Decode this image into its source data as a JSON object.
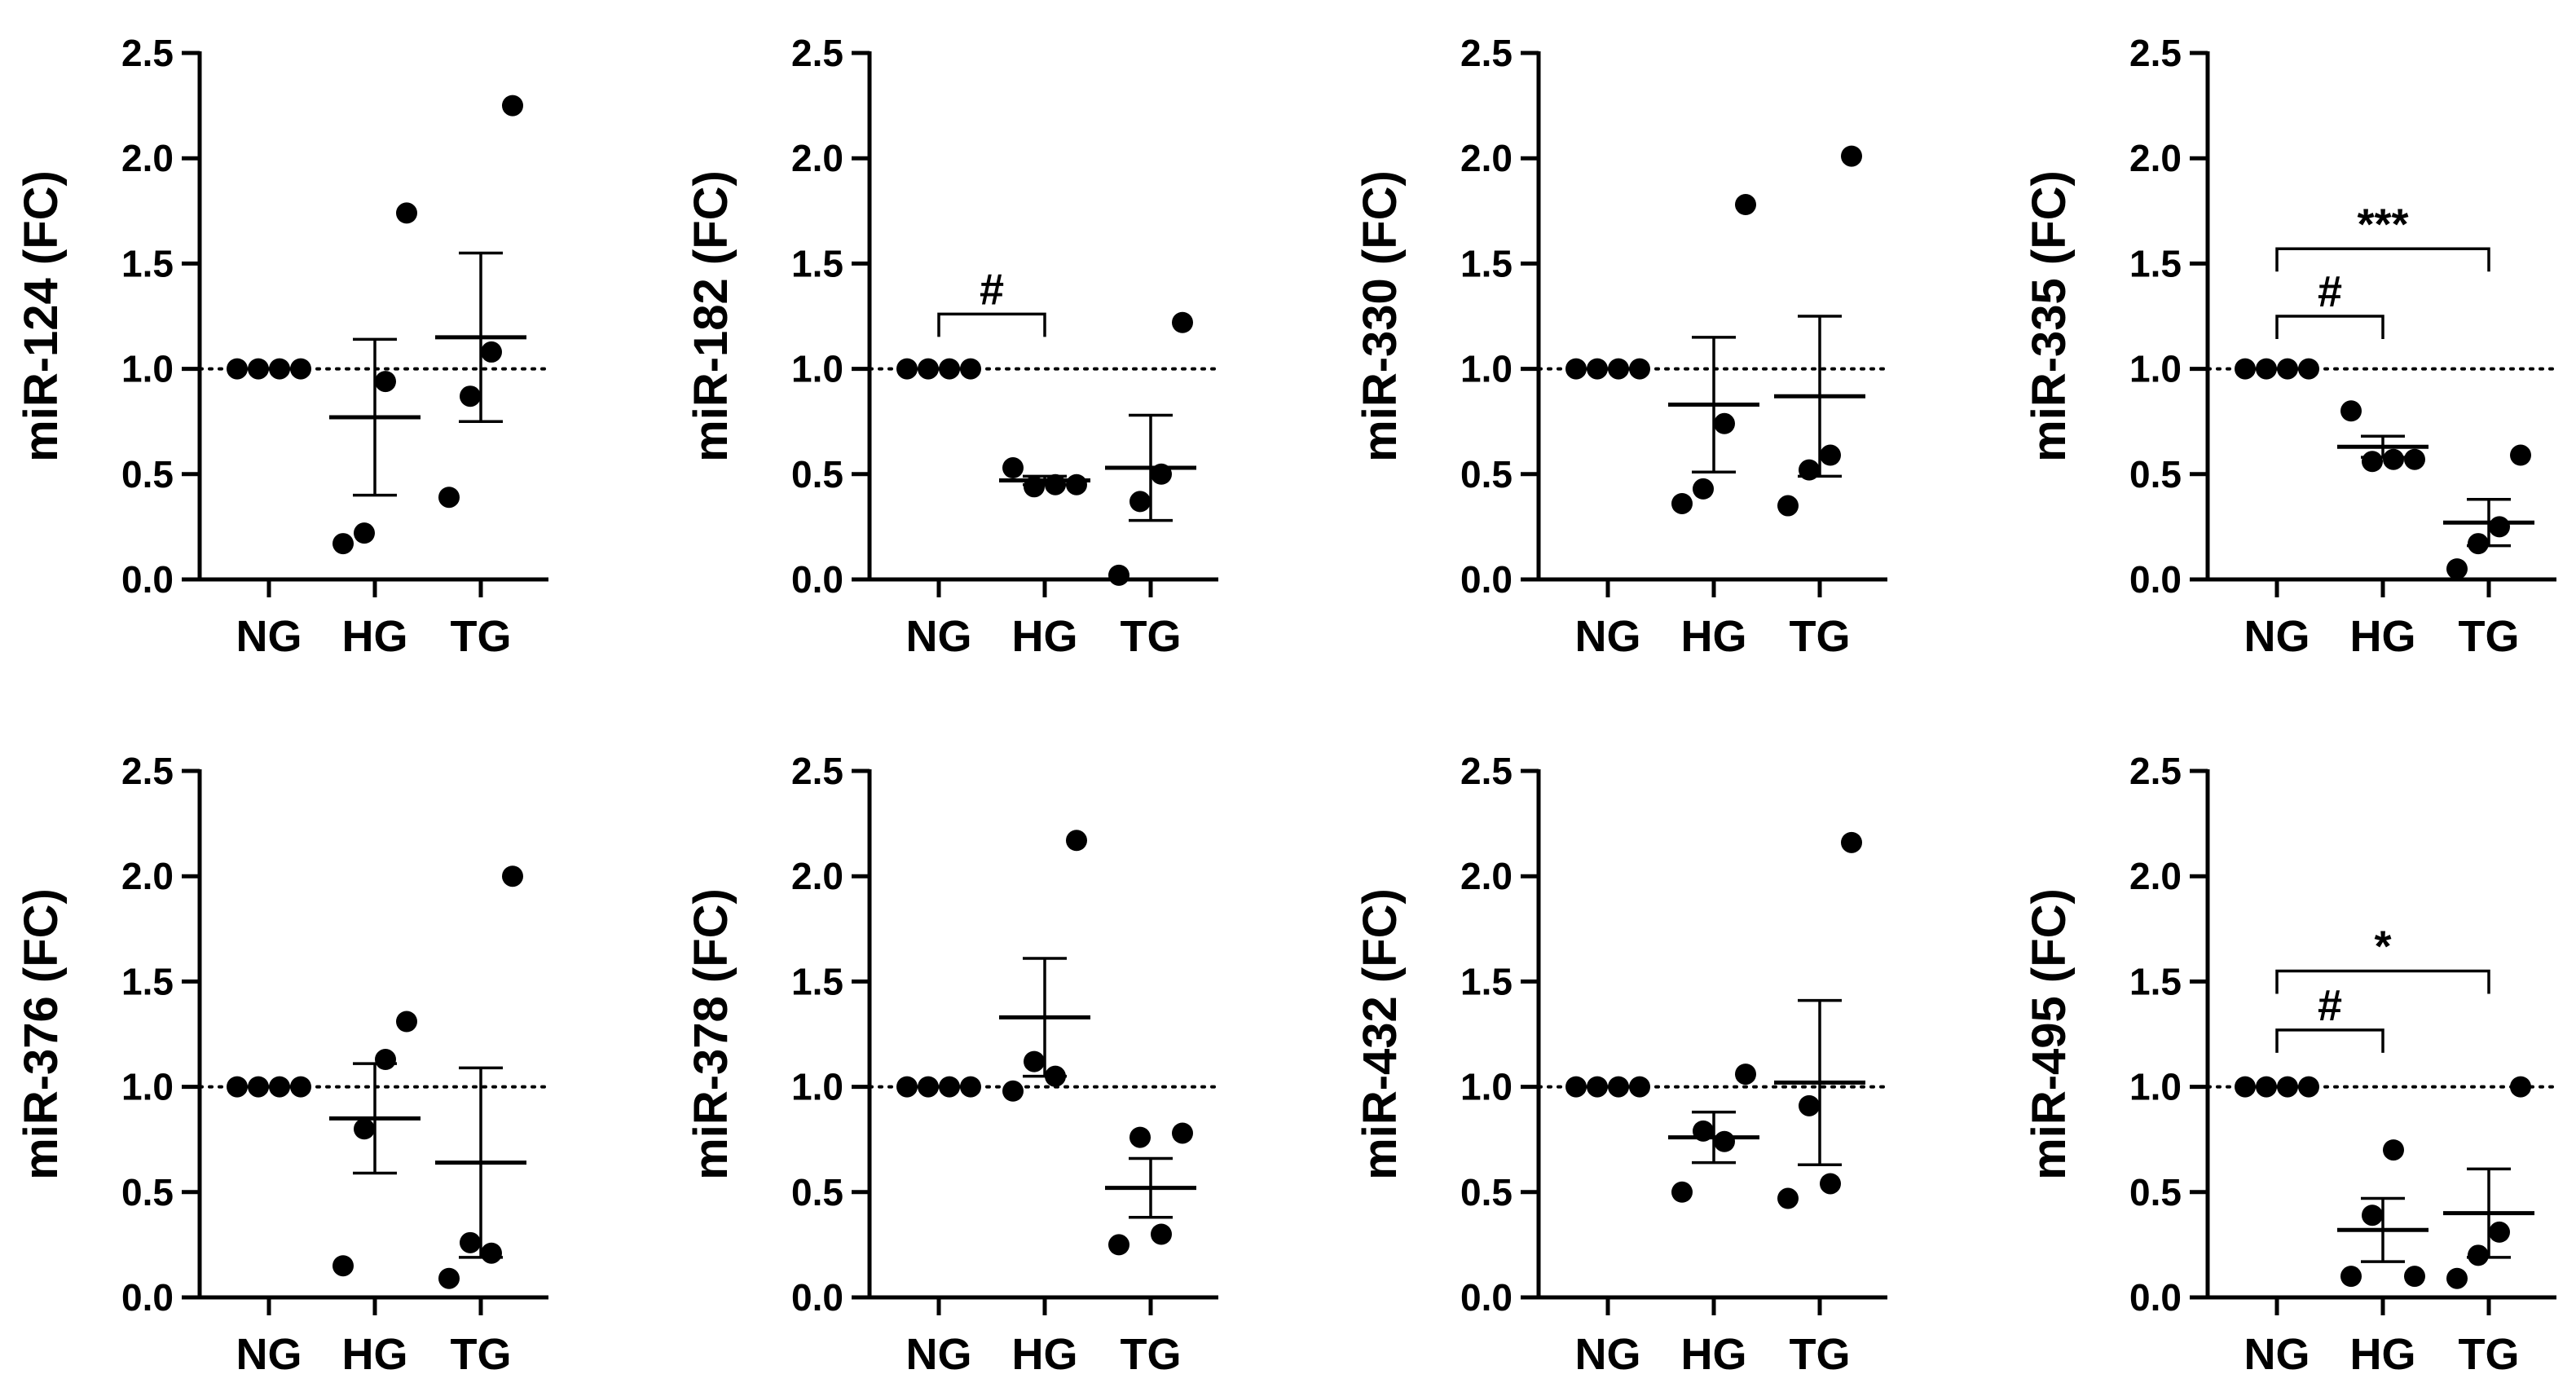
{
  "chart_data": [
    {
      "type": "scatter",
      "ylabel": "miR-124 (FC)",
      "categories": [
        "NG",
        "HG",
        "TG"
      ],
      "ylim": [
        0,
        2.5
      ],
      "yticks": [
        "0.0",
        "0.5",
        "1.0",
        "1.5",
        "2.0",
        "2.5"
      ],
      "reference_line": 1.0,
      "groups": [
        {
          "name": "NG",
          "points": [
            1.0,
            1.0,
            1.0,
            1.0
          ],
          "mean": 1.0,
          "sem": 0.0
        },
        {
          "name": "HG",
          "points": [
            0.17,
            0.22,
            0.94,
            1.74
          ],
          "mean": 0.77,
          "sem": 0.37
        },
        {
          "name": "TG",
          "points": [
            0.39,
            0.87,
            1.08,
            2.25
          ],
          "mean": 1.15,
          "sem": 0.4
        }
      ],
      "significance": []
    },
    {
      "type": "scatter",
      "ylabel": "miR-182 (FC)",
      "categories": [
        "NG",
        "HG",
        "TG"
      ],
      "ylim": [
        0,
        2.5
      ],
      "yticks": [
        "0.0",
        "0.5",
        "1.0",
        "1.5",
        "2.0",
        "2.5"
      ],
      "reference_line": 1.0,
      "groups": [
        {
          "name": "NG",
          "points": [
            1.0,
            1.0,
            1.0,
            1.0
          ],
          "mean": 1.0,
          "sem": 0.0
        },
        {
          "name": "HG",
          "points": [
            0.53,
            0.44,
            0.45,
            0.45
          ],
          "mean": 0.47,
          "sem": 0.02
        },
        {
          "name": "TG",
          "points": [
            0.02,
            0.37,
            0.5,
            1.22
          ],
          "mean": 0.53,
          "sem": 0.25
        }
      ],
      "significance": [
        {
          "from": 0,
          "to": 1,
          "label": "#",
          "level": 1.26
        }
      ]
    },
    {
      "type": "scatter",
      "ylabel": "miR-330 (FC)",
      "categories": [
        "NG",
        "HG",
        "TG"
      ],
      "ylim": [
        0,
        2.5
      ],
      "yticks": [
        "0.0",
        "0.5",
        "1.0",
        "1.5",
        "2.0",
        "2.5"
      ],
      "reference_line": 1.0,
      "groups": [
        {
          "name": "NG",
          "points": [
            1.0,
            1.0,
            1.0,
            1.0
          ],
          "mean": 1.0,
          "sem": 0.0
        },
        {
          "name": "HG",
          "points": [
            0.36,
            0.43,
            0.74,
            1.78
          ],
          "mean": 0.83,
          "sem": 0.32
        },
        {
          "name": "TG",
          "points": [
            0.35,
            0.52,
            0.59,
            2.01
          ],
          "mean": 0.87,
          "sem": 0.38
        }
      ],
      "significance": []
    },
    {
      "type": "scatter",
      "ylabel": "miR-335 (FC)",
      "categories": [
        "NG",
        "HG",
        "TG"
      ],
      "ylim": [
        0,
        2.5
      ],
      "yticks": [
        "0.0",
        "0.5",
        "1.0",
        "1.5",
        "2.0",
        "2.5"
      ],
      "reference_line": 1.0,
      "groups": [
        {
          "name": "NG",
          "points": [
            1.0,
            1.0,
            1.0,
            1.0
          ],
          "mean": 1.0,
          "sem": 0.0
        },
        {
          "name": "HG",
          "points": [
            0.8,
            0.56,
            0.57,
            0.57
          ],
          "mean": 0.63,
          "sem": 0.05
        },
        {
          "name": "TG",
          "points": [
            0.05,
            0.17,
            0.25,
            0.59
          ],
          "mean": 0.27,
          "sem": 0.11
        }
      ],
      "significance": [
        {
          "from": 0,
          "to": 1,
          "label": "#",
          "level": 1.25
        },
        {
          "from": 0,
          "to": 2,
          "label": "***",
          "level": 1.57
        }
      ]
    },
    {
      "type": "scatter",
      "ylabel": "miR-376 (FC)",
      "categories": [
        "NG",
        "HG",
        "TG"
      ],
      "ylim": [
        0,
        2.5
      ],
      "yticks": [
        "0.0",
        "0.5",
        "1.0",
        "1.5",
        "2.0",
        "2.5"
      ],
      "reference_line": 1.0,
      "groups": [
        {
          "name": "NG",
          "points": [
            1.0,
            1.0,
            1.0,
            1.0
          ],
          "mean": 1.0,
          "sem": 0.0
        },
        {
          "name": "HG",
          "points": [
            0.15,
            0.8,
            1.13,
            1.31
          ],
          "mean": 0.85,
          "sem": 0.26
        },
        {
          "name": "TG",
          "points": [
            0.09,
            0.26,
            0.21,
            2.0
          ],
          "mean": 0.64,
          "sem": 0.45
        }
      ],
      "significance": []
    },
    {
      "type": "scatter",
      "ylabel": "miR-378 (FC)",
      "categories": [
        "NG",
        "HG",
        "TG"
      ],
      "ylim": [
        0,
        2.5
      ],
      "yticks": [
        "0.0",
        "0.5",
        "1.0",
        "1.5",
        "2.0",
        "2.5"
      ],
      "reference_line": 1.0,
      "groups": [
        {
          "name": "NG",
          "points": [
            1.0,
            1.0,
            1.0,
            1.0
          ],
          "mean": 1.0,
          "sem": 0.0
        },
        {
          "name": "HG",
          "points": [
            0.98,
            1.12,
            1.05,
            2.17
          ],
          "mean": 1.33,
          "sem": 0.28
        },
        {
          "name": "TG",
          "points": [
            0.25,
            0.76,
            0.3,
            0.78
          ],
          "mean": 0.52,
          "sem": 0.14
        }
      ],
      "significance": []
    },
    {
      "type": "scatter",
      "ylabel": "miR-432 (FC)",
      "categories": [
        "NG",
        "HG",
        "TG"
      ],
      "ylim": [
        0,
        2.5
      ],
      "yticks": [
        "0.0",
        "0.5",
        "1.0",
        "1.5",
        "2.0",
        "2.5"
      ],
      "reference_line": 1.0,
      "groups": [
        {
          "name": "NG",
          "points": [
            1.0,
            1.0,
            1.0,
            1.0
          ],
          "mean": 1.0,
          "sem": 0.0
        },
        {
          "name": "HG",
          "points": [
            0.5,
            0.79,
            0.74,
            1.06
          ],
          "mean": 0.76,
          "sem": 0.12
        },
        {
          "name": "TG",
          "points": [
            0.47,
            0.91,
            0.54,
            2.16
          ],
          "mean": 1.02,
          "sem": 0.39
        }
      ],
      "significance": []
    },
    {
      "type": "scatter",
      "ylabel": "miR-495 (FC)",
      "categories": [
        "NG",
        "HG",
        "TG"
      ],
      "ylim": [
        0,
        2.5
      ],
      "yticks": [
        "0.0",
        "0.5",
        "1.0",
        "1.5",
        "2.0",
        "2.5"
      ],
      "reference_line": 1.0,
      "groups": [
        {
          "name": "NG",
          "points": [
            1.0,
            1.0,
            1.0,
            1.0
          ],
          "mean": 1.0,
          "sem": 0.0
        },
        {
          "name": "HG",
          "points": [
            0.1,
            0.39,
            0.7,
            0.1
          ],
          "mean": 0.32,
          "sem": 0.15
        },
        {
          "name": "TG",
          "points": [
            0.09,
            0.2,
            0.31,
            1.0
          ],
          "mean": 0.4,
          "sem": 0.21
        }
      ],
      "significance": [
        {
          "from": 0,
          "to": 1,
          "label": "#",
          "level": 1.27
        },
        {
          "from": 0,
          "to": 2,
          "label": "*",
          "level": 1.55
        }
      ]
    }
  ]
}
